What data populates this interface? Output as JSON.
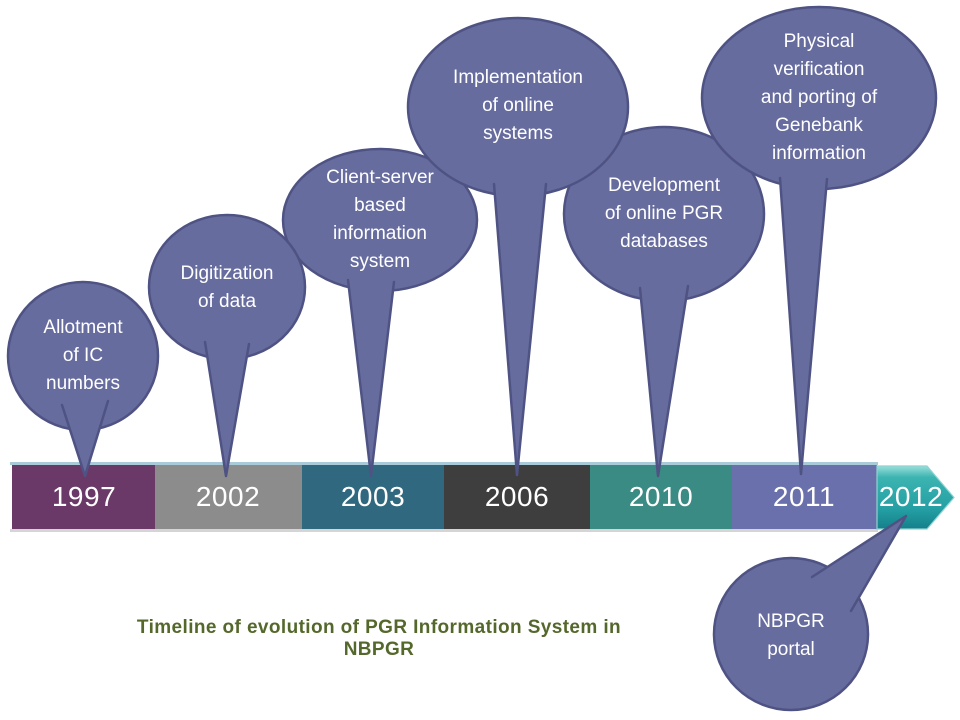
{
  "caption": "Timeline of evolution of PGR Information System in NBPGR",
  "colors": {
    "balloon_fill": "#676c9e",
    "balloon_border": "#4e5384",
    "balloon_text": "#ffffff",
    "year_text": "#ffffff",
    "caption_text": "#55682c",
    "bar_top_edge": "#a9cbd9",
    "bar_bottom_edge": "#d5d5d5",
    "arrow_highlight": "#9adeda",
    "arrow_light": "#3cb4b1",
    "arrow_mid": "#239ea2",
    "arrow_dark": "#157f8b",
    "arrow_outline": "#8ed4d2"
  },
  "timeline": {
    "segments": [
      {
        "year": "1997",
        "color": "#6a3968"
      },
      {
        "year": "2002",
        "color": "#8c8c8c"
      },
      {
        "year": "2003",
        "color": "#30697f"
      },
      {
        "year": "2006",
        "color": "#3e3e3e"
      },
      {
        "year": "2010",
        "color": "#3a8b84"
      },
      {
        "year": "2011",
        "color": "#6a70ab"
      }
    ],
    "arrow_year": "2012"
  },
  "balloons": [
    {
      "lines": [
        "Allotment",
        "of IC",
        "numbers"
      ],
      "points_to_year": "1997"
    },
    {
      "lines": [
        "Digitization",
        "of data"
      ],
      "points_to_year": "2002"
    },
    {
      "lines": [
        "Client-server",
        "based",
        "information",
        "system"
      ],
      "points_to_year": "2003"
    },
    {
      "lines": [
        "Implementation",
        "of online",
        "systems"
      ],
      "points_to_year": "2006"
    },
    {
      "lines": [
        "Development",
        "of online PGR",
        "databases"
      ],
      "points_to_year": "2010"
    },
    {
      "lines": [
        "Physical",
        "verification",
        "and porting of",
        "Genebank",
        "information"
      ],
      "points_to_year": "2011"
    },
    {
      "lines": [
        "NBPGR",
        "portal"
      ],
      "points_to_year": "2012"
    }
  ]
}
